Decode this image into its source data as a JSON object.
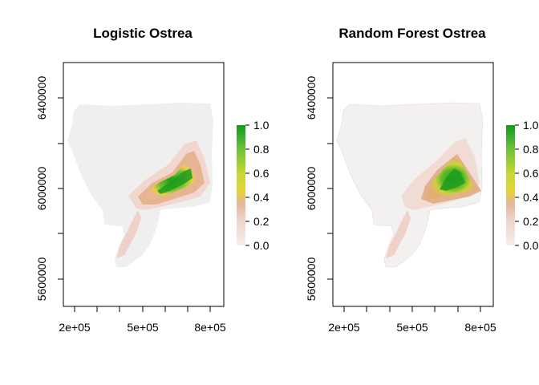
{
  "maps": [
    {
      "title": "Logistic Ostrea",
      "x_ticks": [
        "2e+05",
        "5e+05",
        "8e+05"
      ],
      "y_ticks": [
        "5600000",
        "6000000",
        "6400000"
      ],
      "legend_ticks": [
        "0.0",
        "0.2",
        "0.4",
        "0.6",
        "0.8",
        "1.0"
      ]
    },
    {
      "title": "Random Forest Ostrea",
      "x_ticks": [
        "2e+05",
        "5e+05",
        "8e+05"
      ],
      "y_ticks": [
        "5600000",
        "6000000",
        "6400000"
      ],
      "legend_ticks": [
        "0.0",
        "0.2",
        "0.4",
        "0.6",
        "0.8",
        "1.0"
      ]
    }
  ],
  "colors": {
    "background_land": "#efefef",
    "low": "#f2e6e6",
    "mid_low": "#e8b49a",
    "mid": "#e6c43a",
    "high": "#7cc232",
    "max": "#1a9a1a"
  }
}
